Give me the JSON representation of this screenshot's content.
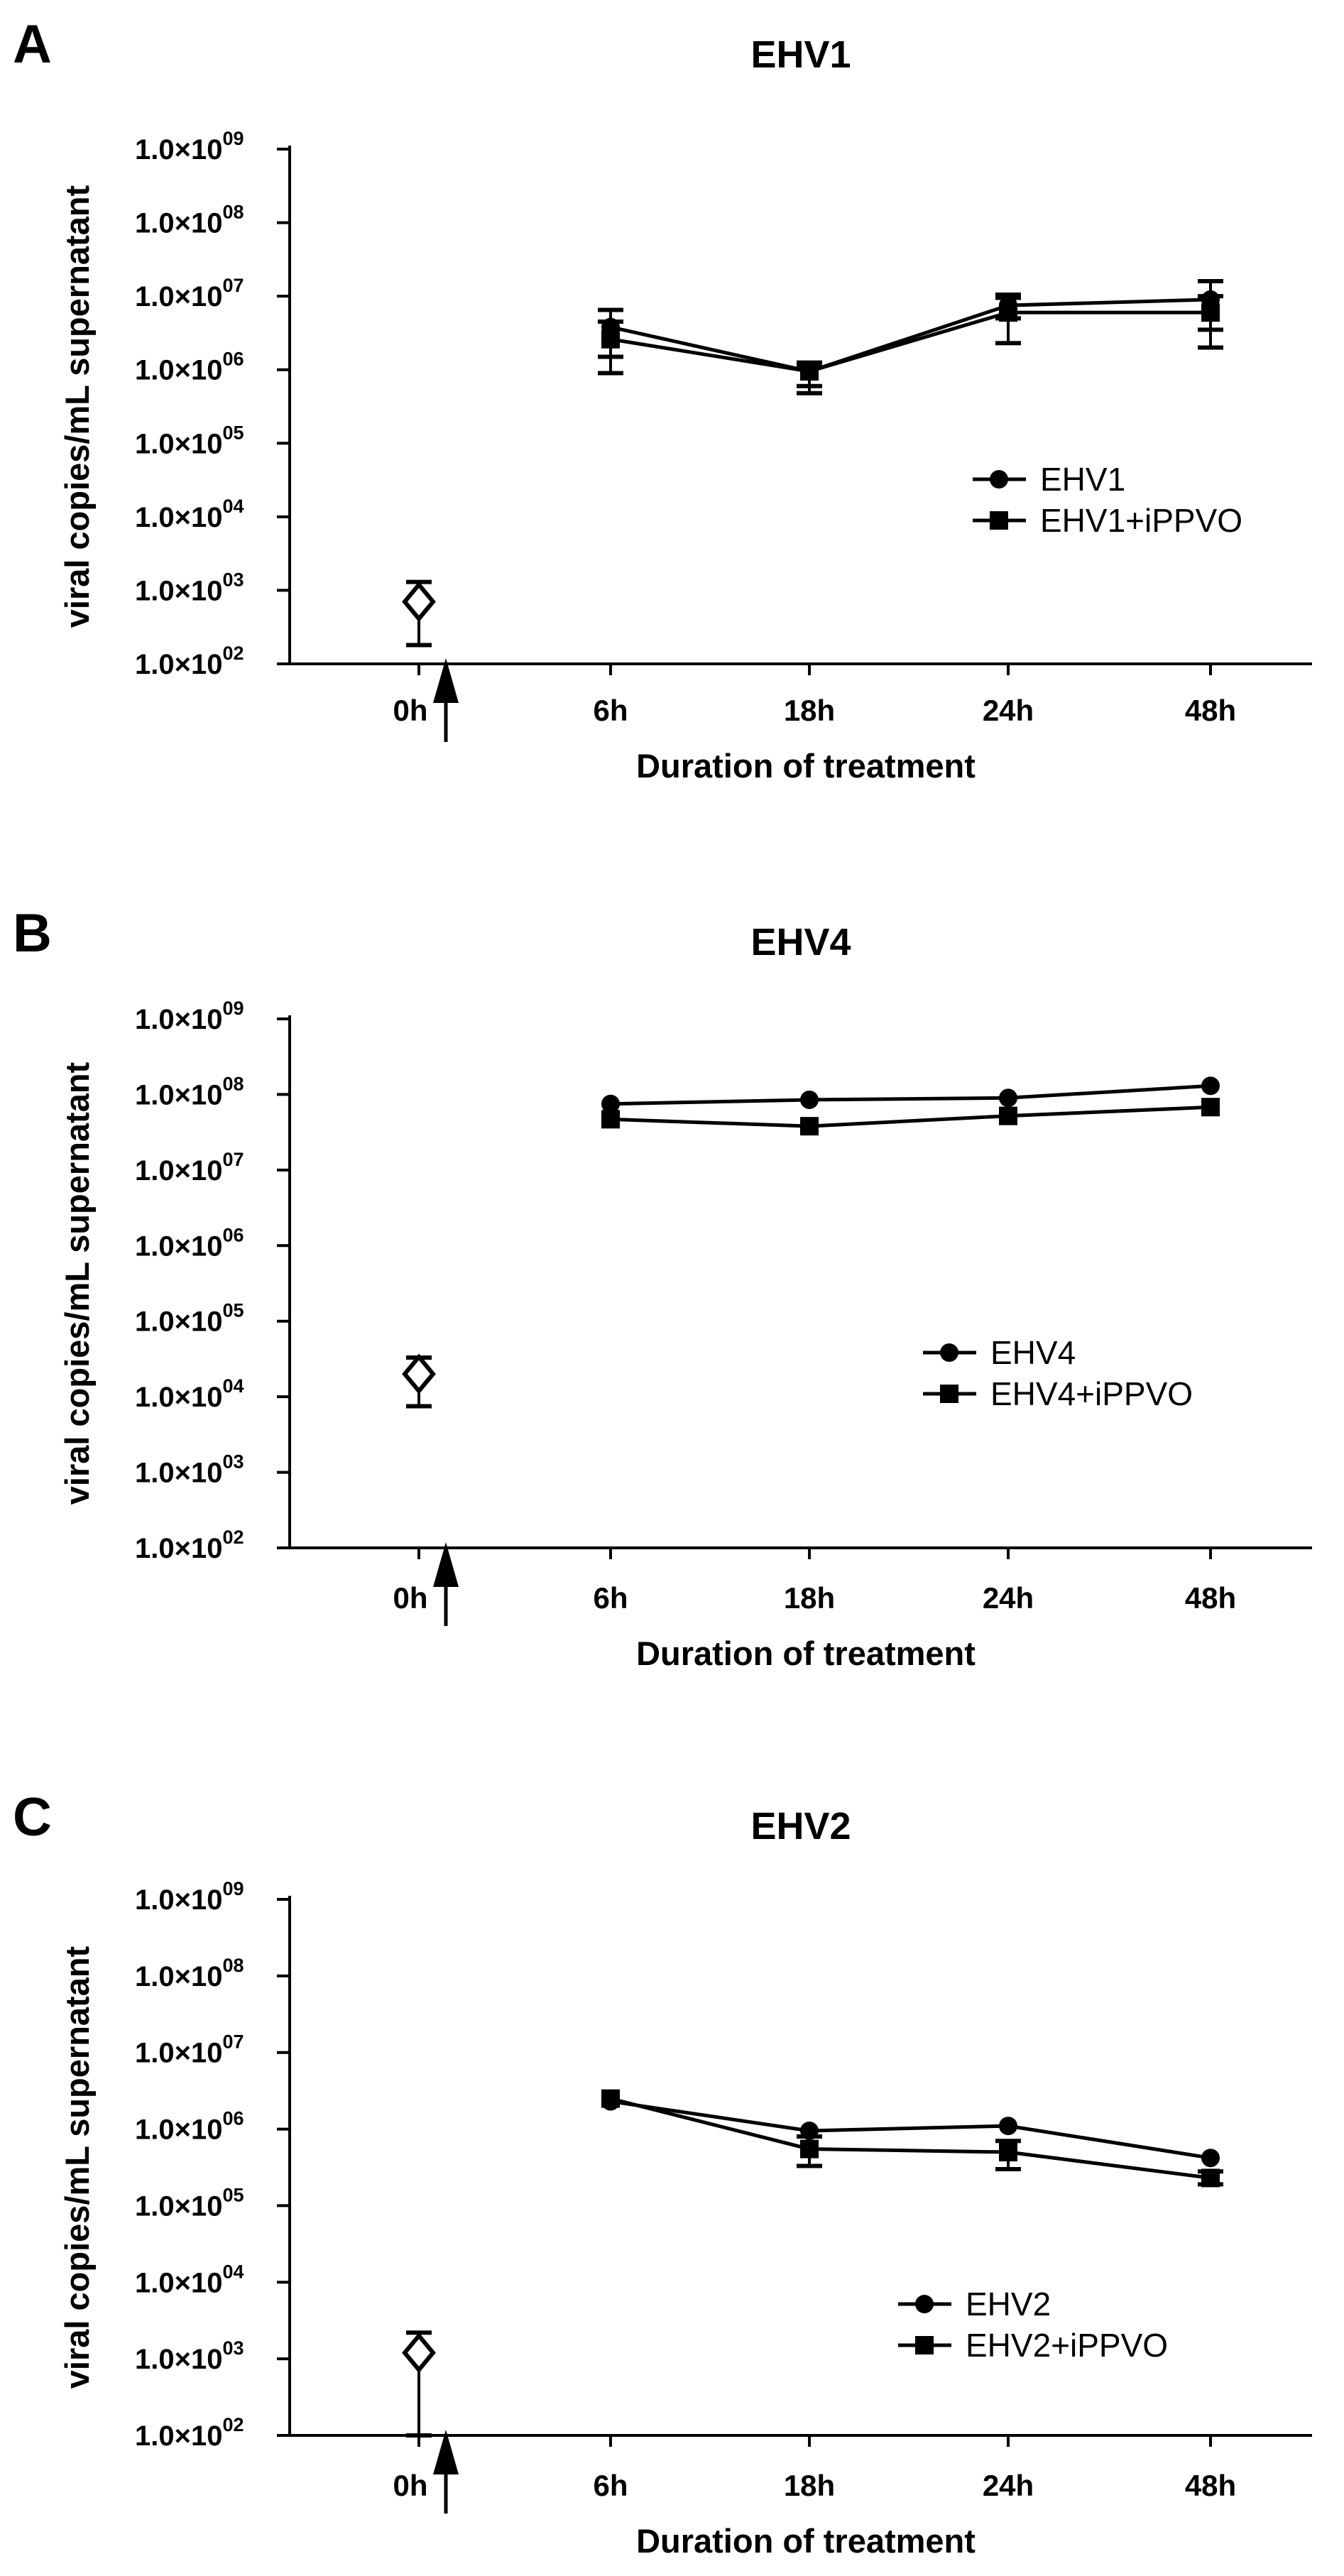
{
  "chart_data": [
    {
      "type": "line",
      "panel_label": "A",
      "title": "EHV1",
      "xlabel": "Duration of treatment",
      "ylabel": "viral copies/mL supernatant",
      "yscale": "log",
      "ylim": [
        100,
        1000000000
      ],
      "yticks": [
        {
          "mant": "1.0",
          "exp": "02"
        },
        {
          "mant": "1.0",
          "exp": "03"
        },
        {
          "mant": "1.0",
          "exp": "04"
        },
        {
          "mant": "1.0",
          "exp": "05"
        },
        {
          "mant": "1.0",
          "exp": "06"
        },
        {
          "mant": "1.0",
          "exp": "07"
        },
        {
          "mant": "1.0",
          "exp": "08"
        },
        {
          "mant": "1.0",
          "exp": "09"
        }
      ],
      "categories": [
        "0h",
        "6h",
        "18h",
        "24h",
        "48h"
      ],
      "baseline": {
        "category": "0h",
        "value": 700,
        "err_low": 180,
        "err_high": 1300
      },
      "treatment_arrow": true,
      "legend_position": "right",
      "series": [
        {
          "name": "EHV1",
          "marker": "circle",
          "points": [
            {
              "x": "6h",
              "y": 3800000,
              "err_low": 1500000,
              "err_high": 6500000
            },
            {
              "x": "18h",
              "y": 950000,
              "err_low": 600000,
              "err_high": 1250000
            },
            {
              "x": "24h",
              "y": 7500000,
              "err_low": 5000000,
              "err_high": 10500000
            },
            {
              "x": "48h",
              "y": 9000000,
              "err_low": 3500000,
              "err_high": 16000000
            }
          ]
        },
        {
          "name": "EHV1+iPPVO",
          "marker": "square",
          "points": [
            {
              "x": "6h",
              "y": 2600000,
              "err_low": 900000,
              "err_high": 4500000
            },
            {
              "x": "18h",
              "y": 950000,
              "err_low": 480000,
              "err_high": 1150000
            },
            {
              "x": "24h",
              "y": 6000000,
              "err_low": 2300000,
              "err_high": 9500000
            },
            {
              "x": "48h",
              "y": 6000000,
              "err_low": 2000000,
              "err_high": 10000000
            }
          ]
        }
      ]
    },
    {
      "type": "line",
      "panel_label": "B",
      "title": "EHV4",
      "xlabel": "Duration of treatment",
      "ylabel": "viral copies/mL supernatant",
      "yscale": "log",
      "ylim": [
        100,
        1000000000
      ],
      "yticks": [
        {
          "mant": "1.0",
          "exp": "02"
        },
        {
          "mant": "1.0",
          "exp": "03"
        },
        {
          "mant": "1.0",
          "exp": "04"
        },
        {
          "mant": "1.0",
          "exp": "05"
        },
        {
          "mant": "1.0",
          "exp": "06"
        },
        {
          "mant": "1.0",
          "exp": "07"
        },
        {
          "mant": "1.0",
          "exp": "08"
        },
        {
          "mant": "1.0",
          "exp": "09"
        }
      ],
      "categories": [
        "0h",
        "6h",
        "18h",
        "24h",
        "48h"
      ],
      "baseline": {
        "category": "0h",
        "value": 20000,
        "err_low": 7500,
        "err_high": 33000
      },
      "treatment_arrow": true,
      "legend_position": "right",
      "series": [
        {
          "name": "EHV4",
          "marker": "circle",
          "points": [
            {
              "x": "6h",
              "y": 75000000
            },
            {
              "x": "18h",
              "y": 85000000
            },
            {
              "x": "24h",
              "y": 90000000
            },
            {
              "x": "48h",
              "y": 130000000
            }
          ]
        },
        {
          "name": "EHV4+iPPVO",
          "marker": "square",
          "points": [
            {
              "x": "6h",
              "y": 47000000
            },
            {
              "x": "18h",
              "y": 38000000
            },
            {
              "x": "24h",
              "y": 52000000
            },
            {
              "x": "48h",
              "y": 68000000
            }
          ]
        }
      ]
    },
    {
      "type": "line",
      "panel_label": "C",
      "title": "EHV2",
      "xlabel": "Duration of treatment",
      "ylabel": "viral copies/mL supernatant",
      "yscale": "log",
      "ylim": [
        100,
        1000000000
      ],
      "yticks": [
        {
          "mant": "1.0",
          "exp": "02"
        },
        {
          "mant": "1.0",
          "exp": "03"
        },
        {
          "mant": "1.0",
          "exp": "04"
        },
        {
          "mant": "1.0",
          "exp": "05"
        },
        {
          "mant": "1.0",
          "exp": "06"
        },
        {
          "mant": "1.0",
          "exp": "07"
        },
        {
          "mant": "1.0",
          "exp": "08"
        },
        {
          "mant": "1.0",
          "exp": "09"
        }
      ],
      "categories": [
        "0h",
        "6h",
        "18h",
        "24h",
        "48h"
      ],
      "baseline": {
        "category": "0h",
        "value": 1200,
        "err_low": 100,
        "err_high": 2200
      },
      "treatment_arrow": true,
      "legend_position": "right",
      "series": [
        {
          "name": "EHV2",
          "marker": "circle",
          "points": [
            {
              "x": "6h",
              "y": 2300000
            },
            {
              "x": "18h",
              "y": 950000
            },
            {
              "x": "24h",
              "y": 1100000
            },
            {
              "x": "48h",
              "y": 420000
            }
          ]
        },
        {
          "name": "EHV2+iPPVO",
          "marker": "square",
          "points": [
            {
              "x": "6h",
              "y": 2500000
            },
            {
              "x": "18h",
              "y": 550000,
              "err_low": 330000,
              "err_high": 800000
            },
            {
              "x": "24h",
              "y": 500000,
              "err_low": 300000,
              "err_high": 700000
            },
            {
              "x": "48h",
              "y": 230000,
              "err_low": 190000,
              "err_high": 280000
            }
          ]
        }
      ]
    }
  ]
}
